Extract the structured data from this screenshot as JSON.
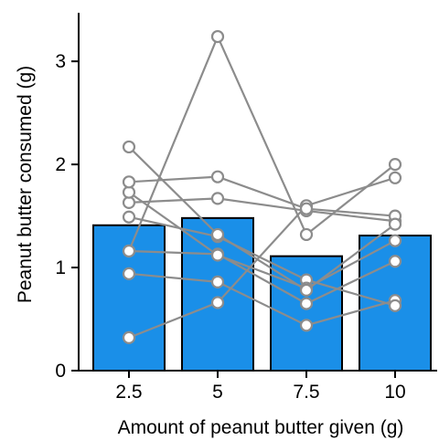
{
  "chart_data": {
    "type": "bar",
    "title": "",
    "xlabel": "Amount of peanut butter given (g)",
    "ylabel": "Peanut butter consumed (g)",
    "categories": [
      "2.5",
      "5",
      "7.5",
      "10"
    ],
    "values": [
      1.41,
      1.48,
      1.11,
      1.31
    ],
    "ylim": [
      0,
      3.4
    ],
    "yticks": [
      "0",
      "1",
      "2",
      "3"
    ],
    "bar_color": "#1a8fe8",
    "bar_edge_color": "#000000",
    "line_color": "#8c8c8c",
    "marker_fill": "#ffffff",
    "grid": false,
    "legend": "none",
    "individuals": [
      {
        "values": [
          0.32,
          0.66,
          1.6,
          1.87
        ]
      },
      {
        "values": [
          0.94,
          0.86,
          0.44,
          0.68
        ]
      },
      {
        "values": [
          1.16,
          1.13,
          0.65,
          1.06
        ]
      },
      {
        "values": [
          1.49,
          1.3,
          0.88,
          0.63
        ]
      },
      {
        "values": [
          1.63,
          1.67,
          1.55,
          1.45
        ]
      },
      {
        "values": [
          1.73,
          1.12,
          0.8,
          1.26
        ]
      },
      {
        "values": [
          1.83,
          1.88,
          1.57,
          1.5
        ]
      },
      {
        "values": [
          2.17,
          1.32,
          0.78,
          1.42
        ]
      },
      {
        "values": [
          1.16,
          3.24,
          1.32,
          2.0
        ]
      }
    ]
  }
}
